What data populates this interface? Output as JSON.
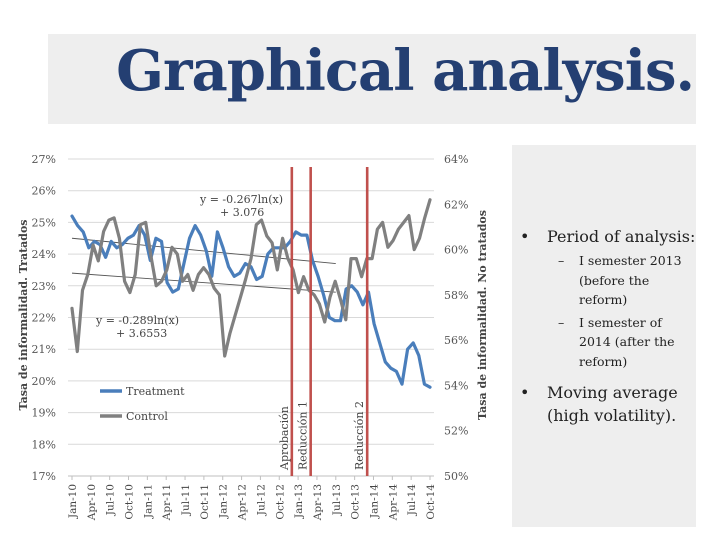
{
  "title": "Graphical analysis.",
  "bullets": [
    {
      "text": "Period of analysis:",
      "subitems": [
        {
          "text": "I semester 2013 (before the reform)"
        },
        {
          "text": "I semester of 2014 (after the reform)"
        }
      ]
    },
    {
      "text": "Moving average (high volatility)."
    }
  ],
  "chart_data": {
    "type": "line",
    "title": "",
    "ylabel_left": "Tasa de informalidad. Tratados",
    "ylabel_right": "Tasa de informalidad. No tratados",
    "y_left_ticks": [
      "27%",
      "26%",
      "25%",
      "24%",
      "23%",
      "22%",
      "21%",
      "20%",
      "19%",
      "18%",
      "17%"
    ],
    "y_right_ticks": [
      "64%",
      "62%",
      "60%",
      "58%",
      "56%",
      "54%",
      "52%",
      "50%"
    ],
    "ylim_left": [
      17,
      27
    ],
    "ylim_right": [
      50,
      64
    ],
    "x_ticks": [
      "Jan-10",
      "Apr-10",
      "Jul-10",
      "Oct-10",
      "Jan-11",
      "Apr-11",
      "Jul-11",
      "Oct-11",
      "Jan-12",
      "Apr-12",
      "Jul-12",
      "Oct-12",
      "Jan-13",
      "Apr-13",
      "Jul-13",
      "Oct-13",
      "Jan-14",
      "Apr-14",
      "Jul-14",
      "Oct-14"
    ],
    "series": [
      {
        "name": "Treatment",
        "axis": "left",
        "color": "#4a7ebb",
        "values": [
          25.2,
          24.9,
          24.7,
          24.2,
          24.4,
          24.3,
          23.9,
          24.4,
          24.2,
          24.3,
          24.5,
          24.6,
          24.9,
          24.6,
          23.8,
          24.5,
          24.4,
          23.1,
          22.8,
          22.9,
          23.7,
          24.5,
          24.9,
          24.6,
          24.1,
          23.3,
          24.7,
          24.2,
          23.6,
          23.3,
          23.4,
          23.7,
          23.6,
          23.2,
          23.3,
          24.0,
          24.2,
          24.2,
          24.2,
          24.4,
          24.7,
          24.6,
          24.6,
          23.8,
          23.3,
          22.7,
          22.0,
          21.9,
          21.9,
          22.9,
          23.0,
          22.8,
          22.4,
          22.8,
          21.8,
          21.2,
          20.6,
          20.4,
          20.3,
          19.9,
          21.0,
          21.2,
          20.8,
          19.9,
          19.8
        ]
      },
      {
        "name": "Control",
        "axis": "right",
        "color": "#808080",
        "values": [
          57.4,
          55.5,
          58.2,
          58.9,
          60.2,
          59.5,
          60.8,
          61.3,
          61.4,
          60.5,
          58.6,
          58.1,
          58.9,
          61.1,
          61.2,
          59.7,
          58.4,
          58.6,
          59.1,
          60.1,
          59.8,
          58.6,
          58.9,
          58.2,
          58.9,
          59.2,
          58.9,
          58.3,
          58.0,
          55.3,
          56.3,
          57.1,
          57.9,
          58.7,
          59.6,
          61.1,
          61.3,
          60.6,
          60.3,
          59.1,
          60.5,
          59.6,
          59.1,
          58.1,
          58.8,
          58.2,
          58.0,
          57.6,
          56.8,
          57.9,
          58.6,
          57.8,
          56.9,
          59.6,
          59.6,
          58.8,
          59.6,
          59.6,
          60.9,
          61.2,
          60.1,
          60.4,
          60.9,
          61.2,
          61.5,
          60.0,
          60.5,
          61.4,
          62.2
        ]
      }
    ],
    "trendlines": [
      {
        "series": "Treatment",
        "equation": "y = -0.267ln(x) + 3.076"
      },
      {
        "series": "Control",
        "equation": "y = -0.289ln(x) + 3.6553"
      }
    ],
    "vertical_markers": [
      {
        "label": "Aprobación",
        "x": "Dec-12"
      },
      {
        "label": "Reducción 1",
        "x": "Mar-13"
      },
      {
        "label": "Reducción 2",
        "x": "Dec-13"
      }
    ],
    "legend": {
      "placement": "bottom-left"
    },
    "grid": {
      "horizontal": true,
      "vertical": false
    }
  }
}
